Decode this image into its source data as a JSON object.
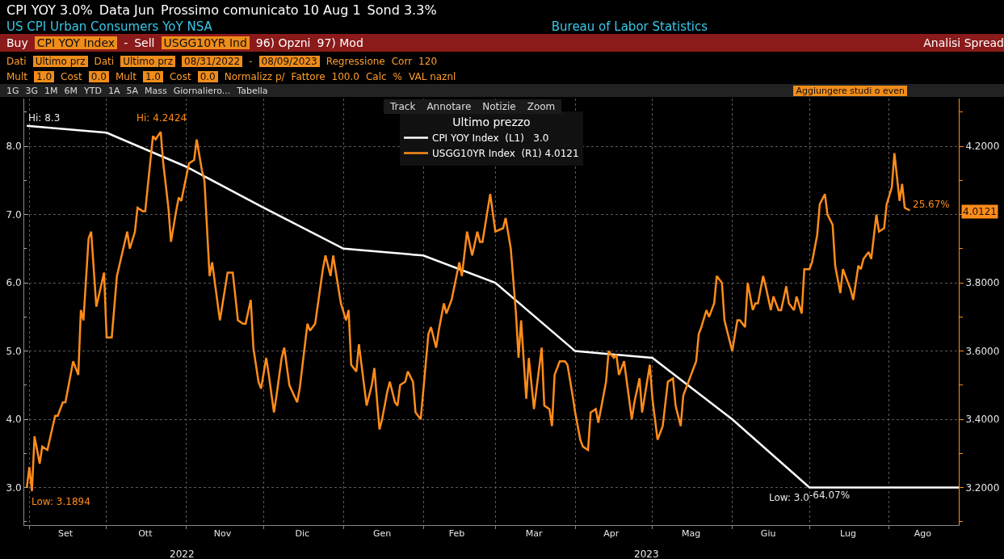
{
  "chart_data": {
    "type": "line",
    "title": "CPI YOY  3.0%",
    "subtitle": "US CPI Urban Consumers YoY NSA",
    "legend_title": "Ultimo prezzo",
    "annotations": [
      "Data Jun",
      "Prossimo comunicato 10 Aug 1",
      "Sond 3.3%",
      "Bureau of Labor Statistics",
      "Buy",
      "CPI YOY Index",
      "-",
      "Sell",
      "USGG10YR Ind",
      "96) Opzni",
      "97) Mod",
      "Analisi Spread",
      "Dati",
      "Ultimo prz",
      "Dati",
      "Ultimo prz",
      "08/31/2022",
      "-",
      "08/09/2023",
      "Regressione",
      "Corr",
      "120",
      "Mult",
      "1.0",
      "Cost",
      "0.0",
      "Mult",
      "1.0",
      "Cost",
      "0.0",
      "Normalizz p/",
      "Fattore",
      "100.0",
      "Calc",
      "%",
      "VAL naznl",
      "1G",
      "3G",
      "1M",
      "6M",
      "YTD",
      "1A",
      "5A",
      "Mass",
      "Giornaliero...",
      "Tabella",
      "Aggiungere studi o even",
      "Track",
      "Annotare",
      "Notizie",
      "Zoom",
      "Hi: 4.2424",
      "Low: 3.1894",
      "25.67%",
      "4.0121",
      "2022",
      "2023",
      {
        "text": "Hi: 8.3",
        "x": "2022-08-31",
        "y": 8.3
      },
      {
        "text": "Low: 3.0",
        "x": "2023-07-01",
        "y": 3.0
      },
      {
        "text": "-64.07%",
        "x": "2023-07-01",
        "y": 3.0
      }
    ],
    "xlim": [
      "2022-08-30",
      "2023-08-28"
    ],
    "xticks": [
      {
        "value": "2022-09-01",
        "label": null
      },
      {
        "value": "2022-09-15",
        "label": "Set"
      },
      {
        "value": "2022-10-01",
        "label": null
      },
      {
        "value": "2022-10-16",
        "label": "Ott"
      },
      {
        "value": "2022-11-01",
        "label": null
      },
      {
        "value": "2022-11-15",
        "label": "Nov"
      },
      {
        "value": "2022-12-01",
        "label": null
      },
      {
        "value": "2022-12-16",
        "label": "Dic"
      },
      {
        "value": "2023-01-01",
        "label": null
      },
      {
        "value": "2023-01-16",
        "label": "Gen"
      },
      {
        "value": "2023-02-01",
        "label": null
      },
      {
        "value": "2023-02-14",
        "label": "Feb"
      },
      {
        "value": "2023-03-01",
        "label": null
      },
      {
        "value": "2023-03-16",
        "label": "Mar"
      },
      {
        "value": "2023-04-01",
        "label": null
      },
      {
        "value": "2023-04-15",
        "label": "Apr"
      },
      {
        "value": "2023-05-01",
        "label": null
      },
      {
        "value": "2023-05-16",
        "label": "Mag"
      },
      {
        "value": "2023-06-01",
        "label": null
      },
      {
        "value": "2023-06-15",
        "label": "Giu"
      },
      {
        "value": "2023-07-01",
        "label": null
      },
      {
        "value": "2023-07-16",
        "label": "Lug"
      },
      {
        "value": "2023-08-01",
        "label": null
      },
      {
        "value": "2023-08-14",
        "label": "Ago"
      }
    ],
    "ylim": [
      2.45,
      8.7
    ],
    "yticks": [
      {
        "value": 2.5,
        "label": null
      },
      {
        "value": 3,
        "label": "3.0"
      },
      {
        "value": 3.5,
        "label": null
      },
      {
        "value": 4,
        "label": "4.0"
      },
      {
        "value": 4.5,
        "label": null
      },
      {
        "value": 5,
        "label": "5.0"
      },
      {
        "value": 5.5,
        "label": null
      },
      {
        "value": 6,
        "label": "6.0"
      },
      {
        "value": 6.5,
        "label": null
      },
      {
        "value": 7,
        "label": "7.0"
      },
      {
        "value": 7.5,
        "label": null
      },
      {
        "value": 8,
        "label": "8.0"
      },
      {
        "value": 8.5,
        "label": null
      }
    ],
    "y2lim": [
      3.09,
      4.34
    ],
    "y2ticks": [
      {
        "value": 3.1,
        "label": null
      },
      {
        "value": 3.2,
        "label": "3.2000"
      },
      {
        "value": 3.3,
        "label": null
      },
      {
        "value": 3.4,
        "label": "3.4000"
      },
      {
        "value": 3.5,
        "label": null
      },
      {
        "value": 3.6,
        "label": "3.6000"
      },
      {
        "value": 3.7,
        "label": null
      },
      {
        "value": 3.8,
        "label": "3.8000"
      },
      {
        "value": 3.9,
        "label": null
      },
      {
        "value": 4.0,
        "label": null
      },
      {
        "value": 4.1,
        "label": null
      },
      {
        "value": 4.2,
        "label": "4.2000"
      },
      {
        "value": 4.3,
        "label": null
      }
    ],
    "grid": true,
    "legend": "top",
    "marker": "none",
    "line_style": "solid",
    "series": [
      {
        "name": "CPI YOY Index  (L1)   3.0",
        "color": "#ffffff",
        "x": [
          "2022-08-31",
          "2022-10-01",
          "2022-11-01",
          "2022-12-01",
          "2023-01-01",
          "2023-02-01",
          "2023-03-01",
          "2023-04-01",
          "2023-05-01",
          "2023-06-01",
          "2023-07-01",
          "2023-08-28"
        ],
        "values": [
          8.3,
          8.2,
          7.7,
          7.1,
          6.5,
          6.4,
          6.0,
          5.0,
          4.9,
          4.0,
          3.0,
          3.0
        ]
      },
      {
        "name": "USGG10YR Index  (R1) 4.0121",
        "color": "#ff8c1a",
        "axis": "y2",
        "x": [
          "2022-08-31",
          "2022-09-01",
          "2022-09-02",
          "2022-09-03",
          "2022-09-05",
          "2022-09-06",
          "2022-09-08",
          "2022-09-11",
          "2022-09-12",
          "2022-09-14",
          "2022-09-15",
          "2022-09-18",
          "2022-09-20",
          "2022-09-21",
          "2022-09-22",
          "2022-09-24",
          "2022-09-25",
          "2022-09-27",
          "2022-09-30",
          "2022-10-01",
          "2022-10-03",
          "2022-10-05",
          "2022-10-09",
          "2022-10-10",
          "2022-10-12",
          "2022-10-13",
          "2022-10-15",
          "2022-10-16",
          "2022-10-19",
          "2022-10-20",
          "2022-10-22",
          "2022-10-23",
          "2022-10-25",
          "2022-10-26",
          "2022-10-28",
          "2022-10-29",
          "2022-10-30",
          "2022-11-02",
          "2022-11-04",
          "2022-11-05",
          "2022-11-07",
          "2022-11-08",
          "2022-11-10",
          "2022-11-11",
          "2022-11-14",
          "2022-11-17",
          "2022-11-19",
          "2022-11-21",
          "2022-11-23",
          "2022-11-24",
          "2022-11-26",
          "2022-11-27",
          "2022-11-29",
          "2022-11-30",
          "2022-12-02",
          "2022-12-03",
          "2022-12-05",
          "2022-12-06",
          "2022-12-08",
          "2022-12-09",
          "2022-12-11",
          "2022-12-14",
          "2022-12-15",
          "2022-12-18",
          "2022-12-19",
          "2022-12-21",
          "2022-12-24",
          "2022-12-25",
          "2022-12-27",
          "2022-12-28",
          "2022-12-31",
          "2023-01-02",
          "2023-01-03",
          "2023-01-04",
          "2023-01-06",
          "2023-01-07",
          "2023-01-10",
          "2023-01-12",
          "2023-01-13",
          "2023-01-15",
          "2023-01-16",
          "2023-01-18",
          "2023-01-19",
          "2023-01-21",
          "2023-01-22",
          "2023-01-23",
          "2023-01-25",
          "2023-01-26",
          "2023-01-28",
          "2023-01-29",
          "2023-01-31",
          "2023-02-03",
          "2023-02-04",
          "2023-02-06",
          "2023-02-07",
          "2023-02-09",
          "2023-02-10",
          "2023-02-12",
          "2023-02-15",
          "2023-02-16",
          "2023-02-18",
          "2023-02-20",
          "2023-02-22",
          "2023-02-23",
          "2023-02-24",
          "2023-02-27",
          "2023-03-01",
          "2023-03-04",
          "2023-03-05",
          "2023-03-07",
          "2023-03-09",
          "2023-03-10",
          "2023-03-11",
          "2023-03-13",
          "2023-03-14",
          "2023-03-16",
          "2023-03-17",
          "2023-03-19",
          "2023-03-20",
          "2023-03-22",
          "2023-03-23",
          "2023-03-24",
          "2023-03-26",
          "2023-03-28",
          "2023-03-29",
          "2023-03-31",
          "2023-04-01",
          "2023-04-03",
          "2023-04-04",
          "2023-04-06",
          "2023-04-07",
          "2023-04-09",
          "2023-04-10",
          "2023-04-13",
          "2023-04-14",
          "2023-04-16",
          "2023-04-17",
          "2023-04-18",
          "2023-04-20",
          "2023-04-23",
          "2023-04-24",
          "2023-04-26",
          "2023-04-27",
          "2023-04-30",
          "2023-05-01",
          "2023-05-03",
          "2023-05-05",
          "2023-05-07",
          "2023-05-09",
          "2023-05-10",
          "2023-05-12",
          "2023-05-13",
          "2023-05-18",
          "2023-05-19",
          "2023-05-20",
          "2023-05-22",
          "2023-05-23",
          "2023-05-25",
          "2023-05-26",
          "2023-05-28",
          "2023-05-29",
          "2023-06-01",
          "2023-06-03",
          "2023-06-04",
          "2023-06-06",
          "2023-06-07",
          "2023-06-09",
          "2023-06-10",
          "2023-06-11",
          "2023-06-13",
          "2023-06-14",
          "2023-06-16",
          "2023-06-17",
          "2023-06-19",
          "2023-06-20",
          "2023-06-22",
          "2023-06-23",
          "2023-06-25",
          "2023-06-26",
          "2023-06-28",
          "2023-06-29",
          "2023-07-01",
          "2023-07-02",
          "2023-07-04",
          "2023-07-05",
          "2023-07-07",
          "2023-07-08",
          "2023-07-10",
          "2023-07-11",
          "2023-07-13",
          "2023-07-14",
          "2023-07-16",
          "2023-07-17",
          "2023-07-18",
          "2023-07-20",
          "2023-07-21",
          "2023-07-22",
          "2023-07-24",
          "2023-07-25",
          "2023-07-27",
          "2023-07-28",
          "2023-07-30",
          "2023-07-31",
          "2023-08-02",
          "2023-08-03",
          "2023-08-05",
          "2023-08-06",
          "2023-08-07",
          "2023-08-09"
        ],
        "values": [
          3.2,
          3.26,
          3.1894,
          3.35,
          3.27,
          3.32,
          3.31,
          3.41,
          3.41,
          3.45,
          3.45,
          3.57,
          3.53,
          3.72,
          3.69,
          3.93,
          3.95,
          3.73,
          3.83,
          3.64,
          3.64,
          3.82,
          3.95,
          3.9,
          3.95,
          4.02,
          4.01,
          4.01,
          4.23,
          4.22,
          4.2424,
          4.15,
          4.02,
          3.92,
          4.01,
          4.05,
          4.04,
          4.15,
          4.16,
          4.22,
          4.13,
          4.1,
          3.82,
          3.86,
          3.69,
          3.83,
          3.83,
          3.69,
          3.68,
          3.68,
          3.75,
          3.61,
          3.51,
          3.49,
          3.58,
          3.53,
          3.42,
          3.47,
          3.58,
          3.61,
          3.5,
          3.45,
          3.49,
          3.68,
          3.66,
          3.68,
          3.84,
          3.88,
          3.82,
          3.88,
          3.74,
          3.69,
          3.72,
          3.56,
          3.54,
          3.62,
          3.44,
          3.5,
          3.55,
          3.37,
          3.4,
          3.48,
          3.51,
          3.45,
          3.44,
          3.5,
          3.51,
          3.54,
          3.51,
          3.42,
          3.4,
          3.65,
          3.67,
          3.61,
          3.66,
          3.74,
          3.71,
          3.75,
          3.86,
          3.82,
          3.95,
          3.88,
          3.95,
          3.92,
          3.92,
          4.06,
          3.95,
          3.96,
          3.99,
          3.9,
          3.71,
          3.58,
          3.69,
          3.46,
          3.58,
          3.43,
          3.49,
          3.61,
          3.44,
          3.43,
          3.38,
          3.53,
          3.57,
          3.57,
          3.56,
          3.47,
          3.42,
          3.34,
          3.32,
          3.31,
          3.42,
          3.43,
          3.39,
          3.51,
          3.6,
          3.58,
          3.59,
          3.53,
          3.57,
          3.4,
          3.45,
          3.52,
          3.42,
          3.56,
          3.46,
          3.34,
          3.38,
          3.51,
          3.52,
          3.44,
          3.38,
          3.47,
          3.57,
          3.65,
          3.67,
          3.72,
          3.7,
          3.74,
          3.82,
          3.8,
          3.69,
          3.6,
          3.69,
          3.69,
          3.67,
          3.8,
          3.72,
          3.74,
          3.74,
          3.82,
          3.79,
          3.72,
          3.76,
          3.72,
          3.72,
          3.79,
          3.74,
          3.72,
          3.76,
          3.71,
          3.84,
          3.84,
          3.86,
          3.94,
          4.03,
          4.06,
          4.0,
          3.97,
          3.85,
          3.77,
          3.84,
          3.8,
          3.78,
          3.75,
          3.85,
          3.84,
          3.87,
          3.89,
          3.87,
          4.0,
          3.95,
          3.96,
          4.03,
          4.08,
          4.18,
          4.04,
          4.09,
          4.02,
          4.0121
        ]
      }
    ]
  }
}
